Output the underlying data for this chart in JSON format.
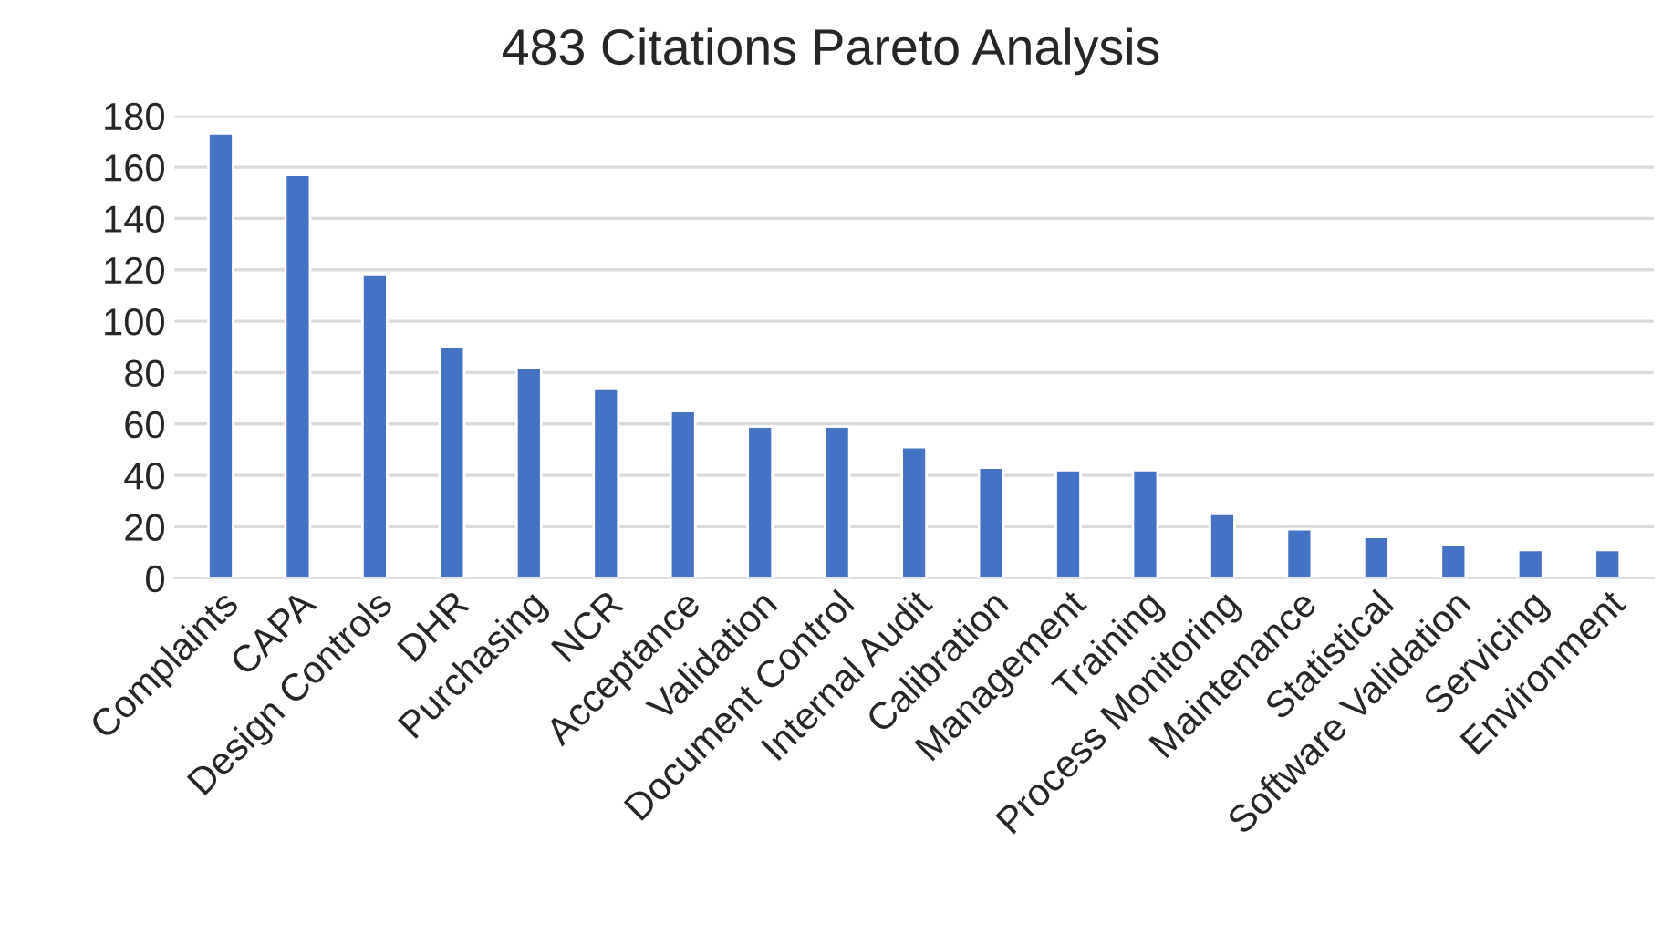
{
  "chart_data": {
    "type": "bar",
    "title": "483 Citations Pareto Analysis",
    "categories": [
      "Complaints",
      "CAPA",
      "Design Controls",
      "DHR",
      "Purchasing",
      "NCR",
      "Acceptance",
      "Validation",
      "Document Control",
      "Internal Audit",
      "Calibration",
      "Management",
      "Training",
      "Process Monitoring",
      "Maintenance",
      "Statistical",
      "Software Validation",
      "Servicing",
      "Environment"
    ],
    "values": [
      173,
      157,
      118,
      90,
      82,
      74,
      65,
      59,
      59,
      51,
      43,
      42,
      42,
      25,
      19,
      16,
      13,
      11,
      11
    ],
    "color": "#4472c4",
    "ylim": [
      0,
      180
    ],
    "yticks": [
      0,
      20,
      40,
      60,
      80,
      100,
      120,
      140,
      160,
      180
    ],
    "grid": "y"
  }
}
